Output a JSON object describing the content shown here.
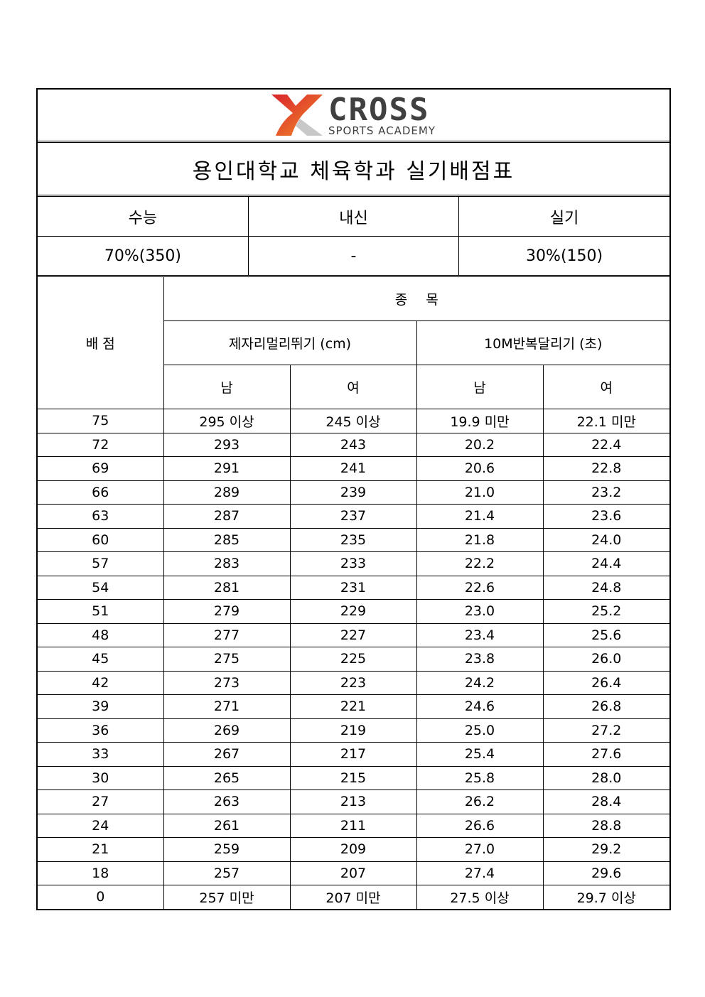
{
  "logo": {
    "brand": "CROSS",
    "subtitle": "SPORTS ACADEMY",
    "colors": [
      "#d9232d",
      "#f28c28",
      "#c8c8c8",
      "#404040"
    ]
  },
  "title": "용인대학교 체육학과 실기배점표",
  "ratio": {
    "headers": [
      "수능",
      "내신",
      "실기"
    ],
    "values": [
      "70%(350)",
      "-",
      "30%(150)"
    ]
  },
  "table": {
    "score_header": "배 점",
    "events_header": "종  목",
    "events": [
      "제자리멀리뛰기 (cm)",
      "10M반복달리기 (초)"
    ],
    "genders": [
      "남",
      "여",
      "남",
      "여"
    ],
    "rows": [
      [
        "75",
        "295 이상",
        "245 이상",
        "19.9 미만",
        "22.1 미만"
      ],
      [
        "72",
        "293",
        "243",
        "20.2",
        "22.4"
      ],
      [
        "69",
        "291",
        "241",
        "20.6",
        "22.8"
      ],
      [
        "66",
        "289",
        "239",
        "21.0",
        "23.2"
      ],
      [
        "63",
        "287",
        "237",
        "21.4",
        "23.6"
      ],
      [
        "60",
        "285",
        "235",
        "21.8",
        "24.0"
      ],
      [
        "57",
        "283",
        "233",
        "22.2",
        "24.4"
      ],
      [
        "54",
        "281",
        "231",
        "22.6",
        "24.8"
      ],
      [
        "51",
        "279",
        "229",
        "23.0",
        "25.2"
      ],
      [
        "48",
        "277",
        "227",
        "23.4",
        "25.6"
      ],
      [
        "45",
        "275",
        "225",
        "23.8",
        "26.0"
      ],
      [
        "42",
        "273",
        "223",
        "24.2",
        "26.4"
      ],
      [
        "39",
        "271",
        "221",
        "24.6",
        "26.8"
      ],
      [
        "36",
        "269",
        "219",
        "25.0",
        "27.2"
      ],
      [
        "33",
        "267",
        "217",
        "25.4",
        "27.6"
      ],
      [
        "30",
        "265",
        "215",
        "25.8",
        "28.0"
      ],
      [
        "27",
        "263",
        "213",
        "26.2",
        "28.4"
      ],
      [
        "24",
        "261",
        "211",
        "26.6",
        "28.8"
      ],
      [
        "21",
        "259",
        "209",
        "27.0",
        "29.2"
      ],
      [
        "18",
        "257",
        "207",
        "27.4",
        "29.6"
      ],
      [
        "0",
        "257 미만",
        "207 미만",
        "27.5 이상",
        "29.7 이상"
      ]
    ]
  }
}
